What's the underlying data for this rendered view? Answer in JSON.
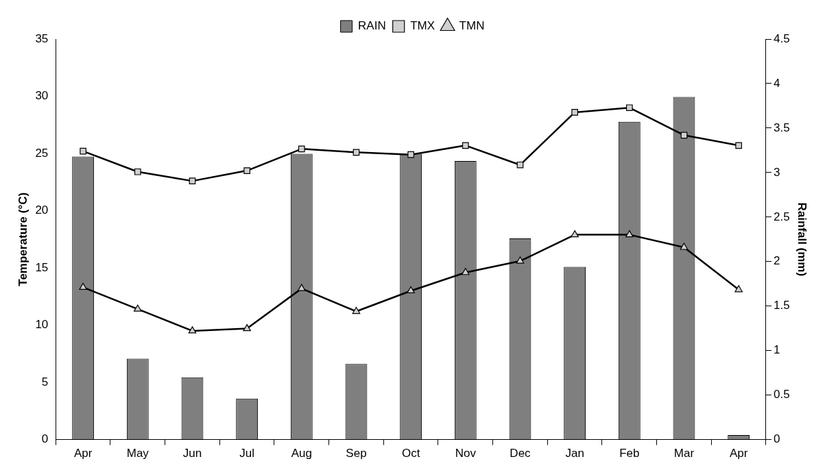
{
  "chart_data": {
    "type": "bar",
    "ylabel": "Temperature (°C)",
    "y2label": "Rainfall (mm)",
    "categories": [
      "Apr",
      "May",
      "Jun",
      "Jul",
      "Aug",
      "Sep",
      "Oct",
      "Nov",
      "Dec",
      "Jan",
      "Feb",
      "Mar",
      "Apr"
    ],
    "series": [
      {
        "name": "RAIN",
        "axis": "y2",
        "color": "#7f7f7f",
        "values": [
          3.18,
          0.91,
          0.7,
          0.46,
          3.21,
          0.85,
          3.21,
          3.13,
          2.26,
          1.94,
          3.57,
          3.85,
          0.05
        ]
      },
      {
        "name": "TMX",
        "type": "line",
        "marker": "square",
        "color": "#000000",
        "values": [
          25.2,
          23.4,
          22.6,
          23.5,
          25.4,
          25.1,
          24.9,
          25.7,
          24.0,
          28.6,
          29.0,
          26.6,
          25.7
        ]
      },
      {
        "name": "TMN",
        "type": "line",
        "marker": "triangle",
        "color": "#000000",
        "values": [
          13.3,
          11.4,
          9.5,
          9.7,
          13.2,
          11.2,
          13.0,
          14.6,
          15.6,
          17.9,
          17.9,
          16.8,
          13.1
        ]
      }
    ],
    "ylim": [
      0,
      35
    ],
    "yticks": [
      0,
      5,
      10,
      15,
      20,
      25,
      30,
      35
    ],
    "y2lim": [
      0,
      4.5
    ],
    "y2ticks": [
      0,
      0.5,
      1,
      1.5,
      2,
      2.5,
      3,
      3.5,
      4,
      4.5
    ],
    "grid": false,
    "legend": "top",
    "line_style": "solid"
  }
}
